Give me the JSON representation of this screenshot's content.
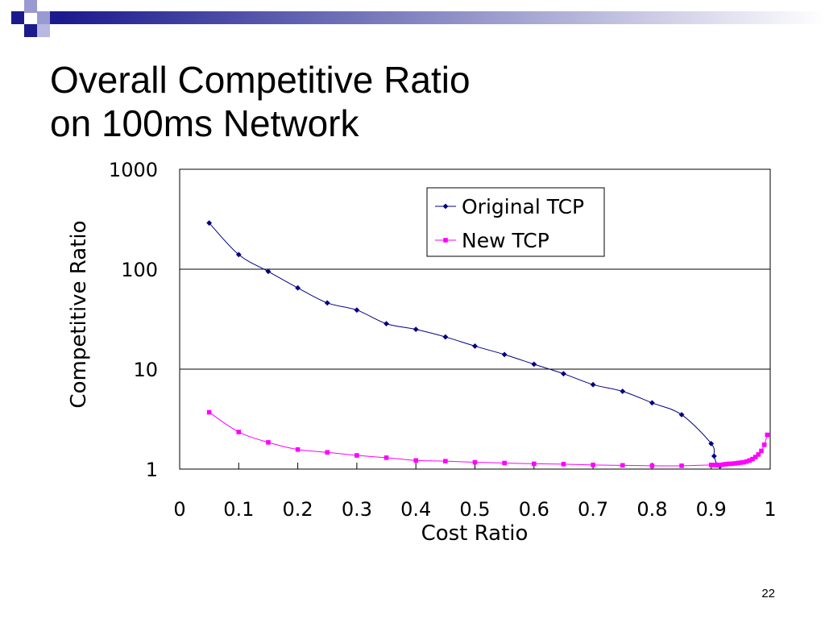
{
  "slide": {
    "title_line1": "Overall Competitive Ratio",
    "title_line2": "on 100ms Network",
    "page_number": "22",
    "accent_colors": {
      "navy": "#1b1b8e",
      "lavender": "#9a9ad2",
      "gradient_end": "#ffffff"
    }
  },
  "chart_data": {
    "type": "line",
    "title": "",
    "xlabel": "Cost Ratio",
    "ylabel": "Competitive Ratio",
    "xlim": [
      0,
      1
    ],
    "ylim": [
      1,
      1000
    ],
    "yscale": "log",
    "grid": "horizontal at y tick levels",
    "legend_position": "top-right",
    "x_ticks": [
      {
        "value": 0,
        "label": "0"
      },
      {
        "value": 0.1,
        "label": "0.1"
      },
      {
        "value": 0.2,
        "label": "0.2"
      },
      {
        "value": 0.3,
        "label": "0.3"
      },
      {
        "value": 0.4,
        "label": "0.4"
      },
      {
        "value": 0.5,
        "label": "0.5"
      },
      {
        "value": 0.6,
        "label": "0.6"
      },
      {
        "value": 0.7,
        "label": "0.7"
      },
      {
        "value": 0.8,
        "label": "0.8"
      },
      {
        "value": 0.9,
        "label": "0.9"
      },
      {
        "value": 1,
        "label": "1"
      }
    ],
    "y_ticks": [
      {
        "value": 1,
        "label": "1"
      },
      {
        "value": 10,
        "label": "10"
      },
      {
        "value": 100,
        "label": "100"
      },
      {
        "value": 1000,
        "label": "1000"
      }
    ],
    "series": [
      {
        "name": "Original TCP",
        "color": "#000080",
        "marker": "diamond",
        "x": [
          0.05,
          0.1,
          0.15,
          0.2,
          0.25,
          0.3,
          0.35,
          0.4,
          0.45,
          0.5,
          0.55,
          0.6,
          0.65,
          0.7,
          0.75,
          0.8,
          0.85,
          0.9,
          0.905,
          0.91,
          0.915
        ],
        "y": [
          290,
          140,
          95,
          65,
          46,
          39,
          28.5,
          25,
          21,
          17,
          14,
          11.2,
          9,
          7,
          6,
          4.6,
          3.5,
          1.8,
          1.35,
          1.1,
          1.07
        ]
      },
      {
        "name": "New TCP",
        "color": "#ff00ff",
        "marker": "square",
        "x": [
          0.05,
          0.1,
          0.15,
          0.2,
          0.25,
          0.3,
          0.35,
          0.4,
          0.45,
          0.5,
          0.55,
          0.6,
          0.65,
          0.7,
          0.75,
          0.8,
          0.85,
          0.9,
          0.905,
          0.91,
          0.915,
          0.92,
          0.925,
          0.93,
          0.935,
          0.94,
          0.945,
          0.95,
          0.955,
          0.96,
          0.965,
          0.97,
          0.975,
          0.98,
          0.985,
          0.99,
          0.995
        ],
        "y": [
          3.7,
          2.35,
          1.85,
          1.57,
          1.47,
          1.37,
          1.3,
          1.22,
          1.2,
          1.17,
          1.15,
          1.13,
          1.12,
          1.1,
          1.09,
          1.08,
          1.08,
          1.1,
          1.1,
          1.1,
          1.1,
          1.11,
          1.12,
          1.13,
          1.13,
          1.14,
          1.15,
          1.16,
          1.17,
          1.19,
          1.22,
          1.26,
          1.32,
          1.4,
          1.52,
          1.75,
          2.2
        ]
      }
    ]
  }
}
